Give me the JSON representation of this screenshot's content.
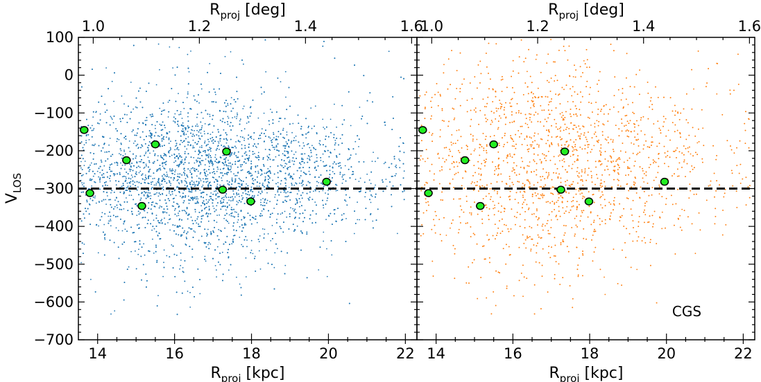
{
  "chart_data": [
    {
      "type": "scatter",
      "panel": "left",
      "xlabel": "R_proj [kpc]",
      "ylabel": "V_LOS",
      "top_xlabel": "R_proj [deg]",
      "xlim": [
        13.5,
        22.3
      ],
      "ylim": [
        -700,
        100
      ],
      "top_xlim": [
        0.972,
        1.61
      ],
      "xticks": [
        14,
        16,
        18,
        20,
        22
      ],
      "yticks": [
        -700,
        -600,
        -500,
        -400,
        -300,
        -200,
        -100,
        0,
        100
      ],
      "top_xticks": [
        "1.0",
        "1.2",
        "1.4",
        "1.6"
      ],
      "annotation": "",
      "reference_line_y": -300,
      "scatter_color": "#1f77b4",
      "background_stars": {
        "count": 7000,
        "y_center": -265,
        "y_spread": 68,
        "density_peak_x": 16.7,
        "x_max": 22.0
      },
      "highlighted_points": [
        {
          "x": 13.65,
          "y": -145
        },
        {
          "x": 13.8,
          "y": -312
        },
        {
          "x": 14.75,
          "y": -225
        },
        {
          "x": 15.15,
          "y": -346
        },
        {
          "x": 15.5,
          "y": -183
        },
        {
          "x": 17.25,
          "y": -303
        },
        {
          "x": 17.35,
          "y": -202
        },
        {
          "x": 17.98,
          "y": -334
        },
        {
          "x": 19.95,
          "y": -282
        }
      ]
    },
    {
      "type": "scatter",
      "panel": "right",
      "xlabel": "R_proj [kpc]",
      "ylabel": "",
      "top_xlabel": "R_proj [deg]",
      "xlim": [
        13.5,
        22.3
      ],
      "ylim": [
        -700,
        100
      ],
      "top_xlim": [
        0.972,
        1.61
      ],
      "xticks": [
        14,
        16,
        18,
        20,
        22
      ],
      "yticks": [
        -700,
        -600,
        -500,
        -400,
        -300,
        -200,
        -100,
        0,
        100
      ],
      "top_xticks": [
        "1.0",
        "1.2",
        "1.4",
        "1.6"
      ],
      "annotation": "CGS",
      "reference_line_y": -300,
      "scatter_color": "#ff7f0e",
      "background_stars": {
        "count": 3200,
        "y_center": -235,
        "y_spread": 95,
        "density_peak_x": 17.0,
        "x_max": 22.2
      },
      "highlighted_points": [
        {
          "x": 13.65,
          "y": -145
        },
        {
          "x": 13.8,
          "y": -312
        },
        {
          "x": 14.75,
          "y": -225
        },
        {
          "x": 15.15,
          "y": -346
        },
        {
          "x": 15.5,
          "y": -183
        },
        {
          "x": 17.25,
          "y": -303
        },
        {
          "x": 17.35,
          "y": -202
        },
        {
          "x": 17.98,
          "y": -334
        },
        {
          "x": 19.95,
          "y": -282
        }
      ]
    }
  ],
  "labels": {
    "x_main": "R",
    "x_sub": "proj",
    "x_unit": " [kpc]",
    "top_main": "R",
    "top_sub": "proj",
    "top_unit": " [deg]",
    "y_main": "V",
    "y_sub": "LOS",
    "annotation": "CGS"
  },
  "colors": {
    "highlight_fill": "#22ee22",
    "highlight_edge": "#000000",
    "ref_line": "#000000"
  }
}
